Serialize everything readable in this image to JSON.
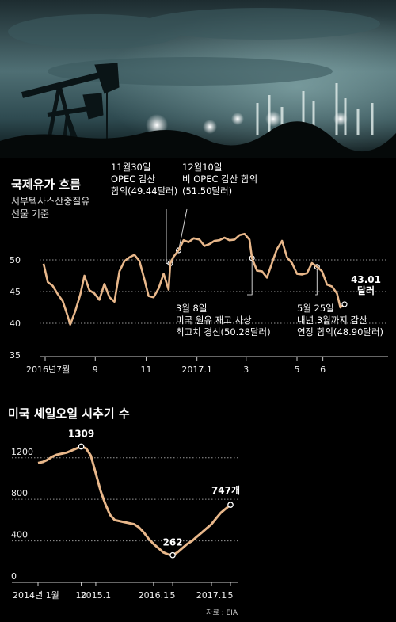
{
  "chart_data": [
    {
      "type": "line",
      "title": "국제유가 흐름",
      "subtitle": [
        "서부텍사스산중질유",
        "선물 기준"
      ],
      "x_tick_labels": [
        "2016년7월",
        "9",
        "11",
        "2017.1",
        "3",
        "5",
        "6"
      ],
      "x_ticks": [
        "2016-07",
        "2016-09",
        "2016-11",
        "2017-01",
        "2017-03",
        "2017-05",
        "2017-06"
      ],
      "y_ticks": [
        35,
        40,
        45,
        50
      ],
      "ylim": [
        35,
        56
      ],
      "grid": "horizontal-dotted",
      "line_color": "#e8b78a",
      "x": [
        "2016-07-01",
        "2016-07-06",
        "2016-07-12",
        "2016-07-18",
        "2016-07-24",
        "2016-07-29",
        "2016-08-02",
        "2016-08-08",
        "2016-08-14",
        "2016-08-19",
        "2016-08-25",
        "2016-08-31",
        "2016-09-06",
        "2016-09-12",
        "2016-09-18",
        "2016-09-24",
        "2016-09-30",
        "2016-10-06",
        "2016-10-12",
        "2016-10-18",
        "2016-10-24",
        "2016-10-30",
        "2016-11-04",
        "2016-11-10",
        "2016-11-16",
        "2016-11-22",
        "2016-11-28",
        "2016-11-30",
        "2016-12-04",
        "2016-12-10",
        "2016-12-16",
        "2016-12-22",
        "2016-12-28",
        "2017-01-04",
        "2017-01-10",
        "2017-01-16",
        "2017-01-22",
        "2017-01-28",
        "2017-02-03",
        "2017-02-09",
        "2017-02-15",
        "2017-02-21",
        "2017-02-27",
        "2017-03-05",
        "2017-03-08",
        "2017-03-14",
        "2017-03-20",
        "2017-03-26",
        "2017-04-01",
        "2017-04-07",
        "2017-04-13",
        "2017-04-19",
        "2017-04-25",
        "2017-05-01",
        "2017-05-07",
        "2017-05-13",
        "2017-05-19",
        "2017-05-25",
        "2017-05-31",
        "2017-06-06",
        "2017-06-12",
        "2017-06-18",
        "2017-06-22",
        "2017-06-27"
      ],
      "values": [
        49.4,
        46.5,
        45.9,
        44.6,
        43.5,
        41.5,
        39.8,
        41.9,
        44.5,
        47.5,
        45.2,
        44.7,
        43.7,
        46.2,
        44.1,
        43.4,
        48.2,
        49.8,
        50.4,
        50.8,
        49.8,
        46.9,
        44.3,
        44.1,
        45.5,
        47.8,
        45.3,
        49.44,
        50.5,
        51.5,
        53.1,
        52.8,
        53.4,
        53.2,
        52.2,
        52.5,
        53.0,
        53.1,
        53.5,
        53.1,
        53.2,
        53.9,
        54.1,
        53.2,
        50.28,
        48.3,
        48.2,
        47.2,
        49.5,
        51.7,
        53.0,
        50.4,
        49.5,
        47.8,
        47.7,
        47.9,
        49.5,
        48.9,
        48.2,
        46.1,
        45.8,
        44.7,
        42.5,
        43.01
      ],
      "annotations": [
        {
          "date": "2016-11-30",
          "lines": [
            "11월30일",
            "OPEC 감산",
            "합의(49.44달러)"
          ]
        },
        {
          "date": "2016-12-10",
          "lines": [
            "12월10일",
            "비 OPEC 감산 합의",
            "(51.50달러)"
          ]
        },
        {
          "date": "2017-03-08",
          "lines": [
            "3월 8일",
            "미국 원유 재고 사상",
            "최고치 경신(50.28달러)"
          ]
        },
        {
          "date": "2017-05-25",
          "lines": [
            "5월 25일",
            "내년 3월까지 감산",
            "연장 합의(48.90달러)"
          ]
        }
      ],
      "end_label": [
        "43.01",
        "달러"
      ]
    },
    {
      "type": "line",
      "title": "미국 셰일오일 시추기 수",
      "x_tick_labels": [
        "2014년 1월",
        "10",
        "2015.1",
        "2016.1",
        "5",
        "2017.1",
        "5"
      ],
      "x_ticks": [
        "2014-01",
        "2014-10",
        "2015-01",
        "2016-01",
        "2016-05",
        "2017-01",
        "2017-05"
      ],
      "y_ticks": [
        0,
        400,
        800,
        1200
      ],
      "ylim": [
        0,
        1450
      ],
      "grid": "horizontal-dotted",
      "line_color": "#e8b78a",
      "x": [
        "2014-01",
        "2014-02",
        "2014-03",
        "2014-04",
        "2014-05",
        "2014-06",
        "2014-07",
        "2014-08",
        "2014-09",
        "2014-10",
        "2014-11",
        "2014-12",
        "2015-01",
        "2015-02",
        "2015-03",
        "2015-04",
        "2015-05",
        "2015-06",
        "2015-07",
        "2015-08",
        "2015-09",
        "2015-10",
        "2015-11",
        "2015-12",
        "2016-01",
        "2016-02",
        "2016-03",
        "2016-04",
        "2016-05",
        "2016-06",
        "2016-07",
        "2016-08",
        "2016-09",
        "2016-10",
        "2016-11",
        "2016-12",
        "2017-01",
        "2017-02",
        "2017-03",
        "2017-04",
        "2017-05"
      ],
      "values": [
        1150,
        1160,
        1180,
        1210,
        1230,
        1240,
        1250,
        1270,
        1290,
        1309,
        1290,
        1220,
        1050,
        880,
        760,
        650,
        600,
        590,
        580,
        570,
        560,
        530,
        480,
        420,
        370,
        330,
        290,
        270,
        262,
        290,
        330,
        370,
        400,
        440,
        480,
        520,
        560,
        620,
        670,
        710,
        747
      ],
      "point_labels": [
        {
          "date": "2014-10",
          "text": "1309"
        },
        {
          "date": "2016-05",
          "text": "262"
        },
        {
          "date": "2017-05",
          "text": "747개"
        }
      ],
      "source": "자료 : EIA"
    }
  ]
}
